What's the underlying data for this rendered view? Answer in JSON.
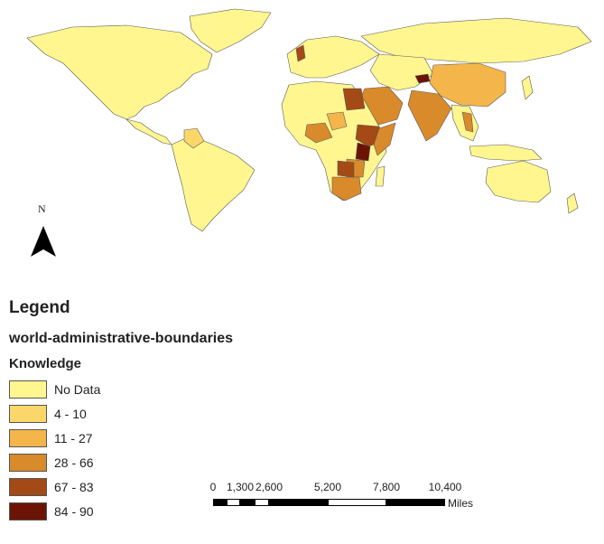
{
  "map": {
    "north_label": "N",
    "colors": {
      "no_data": "#fff68f",
      "c4_10": "#fbd76a",
      "c11_27": "#f4b54a",
      "c28_66": "#d98a2a",
      "c67_83": "#a34a16",
      "c84_90": "#6b1405",
      "border": "#5a5a5a"
    }
  },
  "legend": {
    "title": "Legend",
    "layer": "world-administrative-boundaries",
    "field": "Knowledge",
    "classes": [
      {
        "label": "No Data",
        "color": "#fff68f"
      },
      {
        "label": "4 - 10",
        "color": "#fbd76a"
      },
      {
        "label": "11 - 27",
        "color": "#f4b54a"
      },
      {
        "label": "28 - 66",
        "color": "#d98a2a"
      },
      {
        "label": "67 - 83",
        "color": "#a34a16"
      },
      {
        "label": "84 - 90",
        "color": "#6b1405"
      }
    ]
  },
  "scalebar": {
    "ticks": [
      "0",
      "1,300",
      "2,600",
      "5,200",
      "7,800",
      "10,400"
    ],
    "units": "Miles"
  }
}
